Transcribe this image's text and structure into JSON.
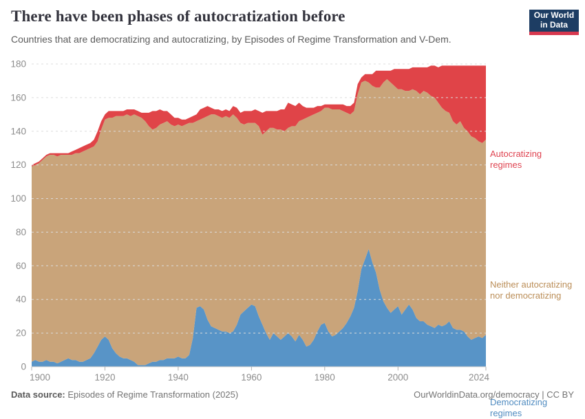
{
  "header": {
    "title": "There have been phases of autocratization before",
    "subtitle": "Countries that are democratizing and autocratizing, by Episodes of Regime Transformation and V-Dem.",
    "logo": {
      "line1": "Our World",
      "line2": "in Data",
      "bg_color": "#1d3d63",
      "accent_color": "#d7384f"
    }
  },
  "legend": {
    "autocratizing": "Autocratizing regimes",
    "neither": "Neither autocratizing nor democratizing",
    "democratizing": "Democratizing regimes"
  },
  "footer": {
    "source_label": "Data source:",
    "source_text": " Episodes of Regime Transformation (2025)",
    "credit": "OurWorldinData.org/democracy | CC BY"
  },
  "colors": {
    "democratizing_area": "#5894c7",
    "neither_area": "#c9a47a",
    "autocratizing_area": "#e04448",
    "democratizing_label": "#4f8bc0",
    "neither_label": "#bb8e58",
    "autocratizing_label": "#df4350",
    "gridline": "#dcdcdc",
    "baseline": "#c8c8c8",
    "tick_mark": "#b3b3b3",
    "axis_text": "#8c8c8c"
  },
  "chart_data": {
    "type": "area",
    "stacked": true,
    "grid": "dashed horizontal, on top of areas",
    "legend_position": "right, colored text labels",
    "xlim": [
      1900,
      2024
    ],
    "ylim": [
      0,
      180
    ],
    "y_ticks": [
      0,
      20,
      40,
      60,
      80,
      100,
      120,
      140,
      160,
      180
    ],
    "x_ticks": [
      1900,
      1920,
      1940,
      1960,
      1980,
      2000,
      2024
    ],
    "years": [
      1900,
      1901,
      1902,
      1903,
      1904,
      1905,
      1906,
      1907,
      1908,
      1909,
      1910,
      1911,
      1912,
      1913,
      1914,
      1915,
      1916,
      1917,
      1918,
      1919,
      1920,
      1921,
      1922,
      1923,
      1924,
      1925,
      1926,
      1927,
      1928,
      1929,
      1930,
      1931,
      1932,
      1933,
      1934,
      1935,
      1936,
      1937,
      1938,
      1939,
      1940,
      1941,
      1942,
      1943,
      1944,
      1945,
      1946,
      1947,
      1948,
      1949,
      1950,
      1951,
      1952,
      1953,
      1954,
      1955,
      1956,
      1957,
      1958,
      1959,
      1960,
      1961,
      1962,
      1963,
      1964,
      1965,
      1966,
      1967,
      1968,
      1969,
      1970,
      1971,
      1972,
      1973,
      1974,
      1975,
      1976,
      1977,
      1978,
      1979,
      1980,
      1981,
      1982,
      1983,
      1984,
      1985,
      1986,
      1987,
      1988,
      1989,
      1990,
      1991,
      1992,
      1993,
      1994,
      1995,
      1996,
      1997,
      1998,
      1999,
      2000,
      2001,
      2002,
      2003,
      2004,
      2005,
      2006,
      2007,
      2008,
      2009,
      2010,
      2011,
      2012,
      2013,
      2014,
      2015,
      2016,
      2017,
      2018,
      2019,
      2020,
      2021,
      2022,
      2023,
      2024
    ],
    "series": [
      {
        "name": "Democratizing regimes",
        "values": [
          3,
          4,
          3,
          3,
          4,
          3,
          3,
          2,
          3,
          4,
          5,
          4,
          4,
          3,
          3,
          4,
          5,
          8,
          12,
          16,
          18,
          16,
          11,
          8,
          6,
          5,
          5,
          4,
          3,
          1,
          1,
          1,
          2,
          3,
          3,
          4,
          4,
          5,
          5,
          5,
          6,
          5,
          5,
          7,
          17,
          35,
          36,
          34,
          28,
          24,
          23,
          22,
          21,
          21,
          20,
          21,
          25,
          31,
          33,
          35,
          37,
          36,
          30,
          25,
          20,
          16,
          20,
          18,
          16,
          18,
          20,
          18,
          15,
          19,
          16,
          12,
          13,
          16,
          21,
          25,
          26,
          21,
          18,
          19,
          21,
          23,
          26,
          30,
          35,
          45,
          58,
          64,
          70,
          62,
          56,
          46,
          39,
          35,
          32,
          34,
          36,
          31,
          34,
          37,
          34,
          29,
          27,
          27,
          25,
          24,
          23,
          25,
          24,
          25,
          27,
          23,
          22,
          22,
          21,
          18,
          16,
          17,
          18,
          17,
          19
        ]
      },
      {
        "name": "Neither autocratizing nor democratizing",
        "values": [
          116,
          116,
          118,
          120,
          121,
          123,
          123,
          123,
          123,
          122,
          121,
          122,
          123,
          124,
          125,
          125,
          125,
          123,
          122,
          125,
          129,
          132,
          137,
          141,
          143,
          144,
          145,
          145,
          147,
          148,
          147,
          145,
          141,
          138,
          139,
          140,
          141,
          141,
          139,
          138,
          138,
          138,
          139,
          138,
          128,
          111,
          111,
          114,
          121,
          126,
          127,
          127,
          127,
          128,
          128,
          129,
          123,
          114,
          111,
          110,
          108,
          109,
          113,
          113,
          120,
          126,
          122,
          123,
          125,
          122,
          122,
          125,
          128,
          127,
          131,
          136,
          136,
          134,
          130,
          127,
          128,
          133,
          135,
          134,
          132,
          129,
          125,
          120,
          117,
          117,
          111,
          106,
          99,
          105,
          110,
          120,
          130,
          136,
          137,
          133,
          129,
          134,
          130,
          127,
          131,
          135,
          135,
          137,
          138,
          137,
          137,
          132,
          130,
          127,
          124,
          123,
          122,
          124,
          121,
          122,
          121,
          119,
          116,
          116,
          116
        ]
      },
      {
        "name": "Autocratizing regimes",
        "values": [
          1,
          1,
          1,
          1,
          1,
          1,
          1,
          2,
          1,
          1,
          1,
          2,
          2,
          3,
          3,
          3,
          3,
          4,
          6,
          5,
          3,
          4,
          4,
          3,
          3,
          3,
          3,
          4,
          3,
          3,
          3,
          5,
          8,
          11,
          10,
          9,
          7,
          6,
          6,
          5,
          4,
          4,
          3,
          3,
          4,
          4,
          6,
          6,
          6,
          4,
          3,
          4,
          4,
          4,
          4,
          5,
          6,
          6,
          8,
          7,
          7,
          8,
          9,
          13,
          12,
          10,
          10,
          11,
          12,
          13,
          15,
          13,
          12,
          11,
          8,
          6,
          5,
          4,
          4,
          3,
          2,
          2,
          3,
          3,
          3,
          4,
          4,
          5,
          5,
          6,
          3,
          4,
          5,
          7,
          10,
          10,
          7,
          5,
          7,
          10,
          12,
          12,
          13,
          13,
          13,
          14,
          16,
          14,
          15,
          18,
          19,
          21,
          25,
          27,
          28,
          33,
          35,
          33,
          37,
          39,
          42,
          43,
          45,
          46,
          44
        ]
      }
    ]
  }
}
